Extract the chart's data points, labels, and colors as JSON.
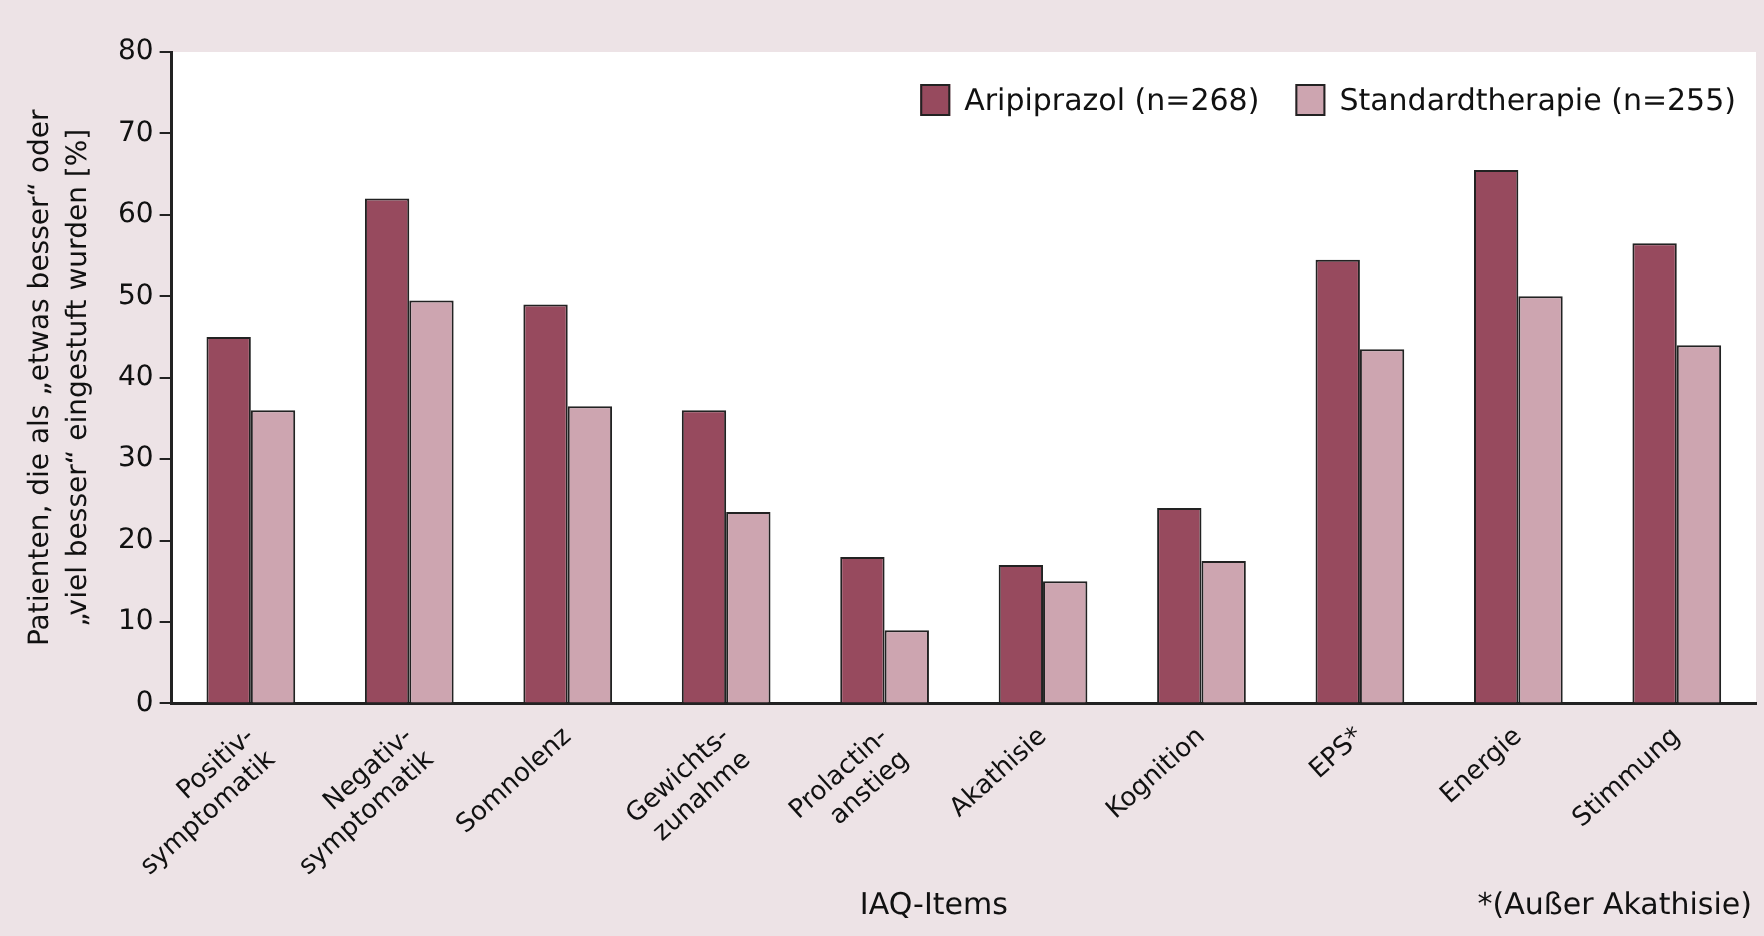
{
  "chart_data": {
    "type": "bar",
    "categories": [
      "Positiv- symptomatik",
      "Negativ- symptomatik",
      "Somnolenz",
      "Gewichts- zunahme",
      "Prolactin- anstieg",
      "Akathisie",
      "Kognition",
      "EPS*",
      "Energie",
      "Stimmung"
    ],
    "series": [
      {
        "name": "Aripiprazol (n=268)",
        "color": "#974a5e",
        "values": [
          45,
          62,
          49,
          36,
          18,
          17,
          24,
          54.5,
          65.5,
          56.5
        ]
      },
      {
        "name": "Standardtherapie (n=255)",
        "color": "#cda5b0",
        "values": [
          36,
          49.5,
          36.5,
          23.5,
          9,
          15,
          17.5,
          43.5,
          50,
          44
        ]
      }
    ],
    "xlabel": "IAQ-Items",
    "ylabel": "Patienten, die als „etwas besser“ oder\n„viel besser“ eingestuft wurden [%]",
    "ylim": [
      0,
      80
    ],
    "yticks": [
      0,
      10,
      20,
      30,
      40,
      50,
      60,
      70,
      80
    ],
    "legend": "top right",
    "annotations": [
      "*(Außer Akathisie)"
    ]
  }
}
